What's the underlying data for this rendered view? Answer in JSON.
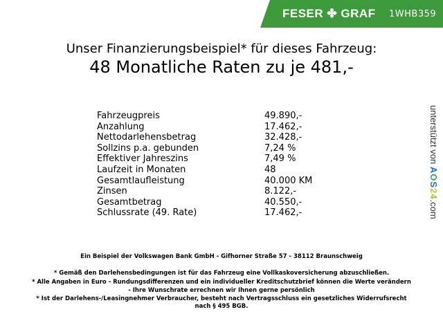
{
  "header": {
    "brand": "FESER ✤ GRAF",
    "vehicle_code": "1WHB359",
    "brand_color": "#3c9a3a"
  },
  "title": {
    "line1": "Unser Finanzierungsbeispiel* für dieses Fahrzeug:",
    "line2": "48 Monatliche Raten zu je 481,-"
  },
  "rows": [
    {
      "label": "Fahrzeugpreis",
      "value": "49.890,-"
    },
    {
      "label": "Anzahlung",
      "value": "17.462,-"
    },
    {
      "label": "Nettodarlehensbetrag",
      "value": "32.428,-"
    },
    {
      "label": "Sollzins p.a. gebunden",
      "value": "7,24 %"
    },
    {
      "label": "Effektiver Jahreszins",
      "value": "7,49 %"
    },
    {
      "label": "Laufzeit in Monaten",
      "value": "48"
    },
    {
      "label": "Gesamtlaufleistung",
      "value": "40.000 KM"
    },
    {
      "label": "Zinsen",
      "value": "8.122,-"
    },
    {
      "label": "Gesamtbetrag",
      "value": "40.550,-"
    },
    {
      "label": "Schlussrate (49. Rate)",
      "value": "17.462,-"
    }
  ],
  "side": {
    "text": "unterstützt von",
    "logo": "AOS24",
    ".com": ".com"
  },
  "footer": {
    "bank": "Ein Beispiel der Volkswagen Bank GmbH - Gifhorner Straße 57 - 38112 Braunschweig",
    "note1": "* Gemäß den Darlehensbedingungen ist für das Fahrzeug eine Vollkaskoversicherung abzuschließen.",
    "note2a": "* Alle Angaben in Euro - Rundungsdifferenzen und ein individueller Kreditschutzbrief können die Werte verändern",
    "note2b": "- Ihre Wunschrate errechnen wir Ihnen gerne persönlich",
    "note3a": "* Ist der Darlehens-/Leasingnehmer Verbraucher, besteht nach Vertragsschluss ein gesetzliches Widerrufsrecht",
    "note3b": "nach § 495 BGB."
  }
}
